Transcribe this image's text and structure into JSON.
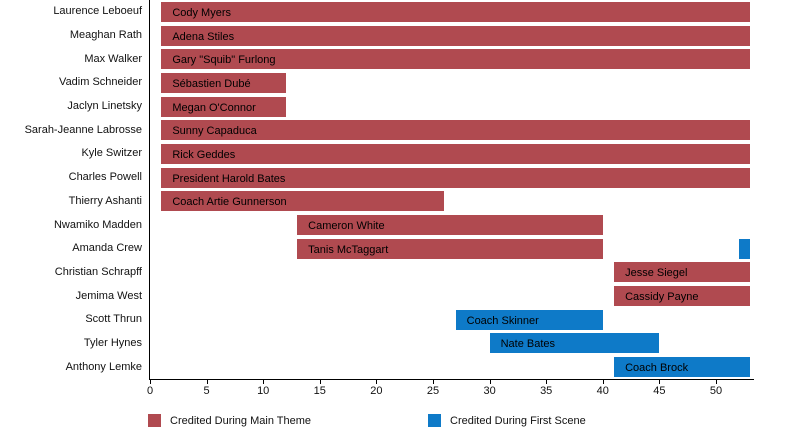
{
  "chart_data": {
    "type": "bar",
    "orientation": "horizontal",
    "title": "",
    "xlabel": "",
    "ylabel": "",
    "xlim": [
      0,
      53.4
    ],
    "xticks": [
      0,
      5,
      10,
      15,
      20,
      25,
      30,
      35,
      40,
      45,
      50
    ],
    "grid": false,
    "legend_position": "bottom",
    "series_colors": {
      "main_theme": "#B04A50",
      "first_scene": "#0E7AC8"
    },
    "legend": [
      {
        "label": "Credited During Main Theme",
        "series": "main_theme",
        "color": "#B04A50"
      },
      {
        "label": "Credited During First Scene",
        "series": "first_scene",
        "color": "#0E7AC8"
      }
    ],
    "rows": [
      {
        "actor": "Laurence Leboeuf",
        "bars": [
          {
            "label": "Cody Myers",
            "start": 1,
            "end": 53,
            "series": "main_theme"
          }
        ]
      },
      {
        "actor": "Meaghan Rath",
        "bars": [
          {
            "label": "Adena Stiles",
            "start": 1,
            "end": 53,
            "series": "main_theme"
          }
        ]
      },
      {
        "actor": "Max Walker",
        "bars": [
          {
            "label": "Gary \"Squib\" Furlong",
            "start": 1,
            "end": 53,
            "series": "main_theme"
          }
        ]
      },
      {
        "actor": "Vadim Schneider",
        "bars": [
          {
            "label": "Sébastien Dubé",
            "start": 1,
            "end": 12,
            "series": "main_theme"
          }
        ]
      },
      {
        "actor": "Jaclyn Linetsky",
        "bars": [
          {
            "label": "Megan O'Connor",
            "start": 1,
            "end": 12,
            "series": "main_theme"
          }
        ]
      },
      {
        "actor": "Sarah-Jeanne Labrosse",
        "bars": [
          {
            "label": "Sunny Capaduca",
            "start": 1,
            "end": 53,
            "series": "main_theme"
          }
        ]
      },
      {
        "actor": "Kyle Switzer",
        "bars": [
          {
            "label": "Rick Geddes",
            "start": 1,
            "end": 53,
            "series": "main_theme"
          }
        ]
      },
      {
        "actor": "Charles Powell",
        "bars": [
          {
            "label": "President Harold Bates",
            "start": 1,
            "end": 53,
            "series": "main_theme"
          }
        ]
      },
      {
        "actor": "Thierry Ashanti",
        "bars": [
          {
            "label": "Coach Artie Gunnerson",
            "start": 1,
            "end": 26,
            "series": "main_theme"
          }
        ]
      },
      {
        "actor": "Nwamiko Madden",
        "bars": [
          {
            "label": "Cameron White",
            "start": 13,
            "end": 40,
            "series": "main_theme"
          }
        ]
      },
      {
        "actor": "Amanda Crew",
        "bars": [
          {
            "label": "Tanis McTaggart",
            "start": 13,
            "end": 40,
            "series": "main_theme"
          },
          {
            "label": "",
            "start": 52,
            "end": 53,
            "series": "first_scene"
          }
        ]
      },
      {
        "actor": "Christian Schrapff",
        "bars": [
          {
            "label": "Jesse Siegel",
            "start": 41,
            "end": 53,
            "series": "main_theme"
          }
        ]
      },
      {
        "actor": "Jemima West",
        "bars": [
          {
            "label": "Cassidy Payne",
            "start": 41,
            "end": 53,
            "series": "main_theme"
          }
        ]
      },
      {
        "actor": "Scott Thrun",
        "bars": [
          {
            "label": "Coach Skinner",
            "start": 27,
            "end": 40,
            "series": "first_scene"
          }
        ]
      },
      {
        "actor": "Tyler Hynes",
        "bars": [
          {
            "label": "Nate Bates",
            "start": 30,
            "end": 45,
            "series": "first_scene"
          }
        ]
      },
      {
        "actor": "Anthony Lemke",
        "bars": [
          {
            "label": "Coach Brock",
            "start": 41,
            "end": 53,
            "series": "first_scene"
          }
        ]
      }
    ]
  }
}
